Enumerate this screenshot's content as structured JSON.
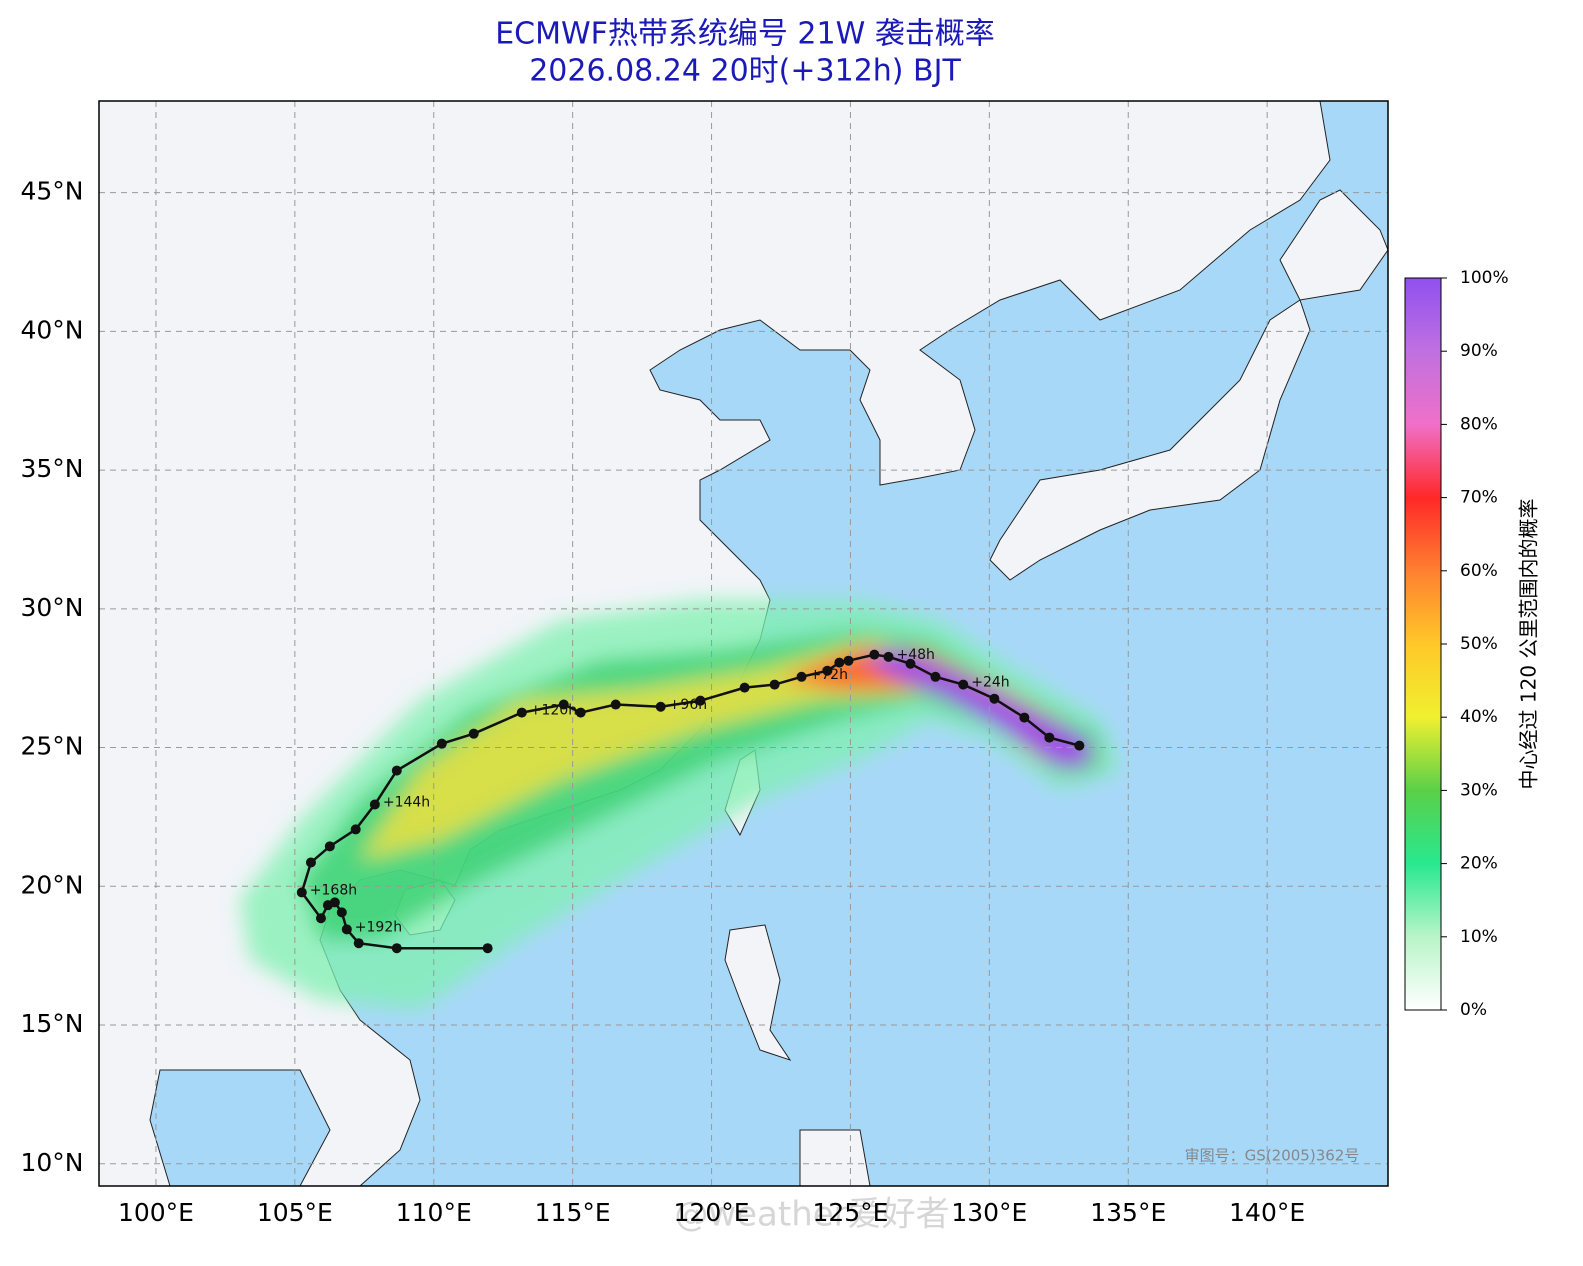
{
  "chart_data": {
    "type": "track",
    "title": "ECMWF热带系统编号 21W 袭击概率",
    "subtitle": "2026.08.24 20时(+312h) BJT",
    "xlim": [
      97.95,
      144.35
    ],
    "ylim": [
      9.2,
      48.3
    ],
    "xticks": [
      {
        "value": 100,
        "label": "100°E"
      },
      {
        "value": 105,
        "label": "105°E"
      },
      {
        "value": 110,
        "label": "110°E"
      },
      {
        "value": 115,
        "label": "115°E"
      },
      {
        "value": 120,
        "label": "120°E"
      },
      {
        "value": 125,
        "label": "125°E"
      },
      {
        "value": 130,
        "label": "130°E"
      },
      {
        "value": 135,
        "label": "135°E"
      },
      {
        "value": 140,
        "label": "140°E"
      }
    ],
    "yticks": [
      {
        "value": 10,
        "label": "10°N"
      },
      {
        "value": 15,
        "label": "15°N"
      },
      {
        "value": 20,
        "label": "20°N"
      },
      {
        "value": 25,
        "label": "25°N"
      },
      {
        "value": 30,
        "label": "30°N"
      },
      {
        "value": 35,
        "label": "35°N"
      },
      {
        "value": 40,
        "label": "40°N"
      },
      {
        "value": 45,
        "label": "45°N"
      }
    ],
    "grid": true,
    "color": "#111111",
    "x": [
      133.24,
      132.16,
      131.26,
      130.18,
      129.06,
      128.06,
      127.16,
      126.37,
      125.86,
      124.93,
      124.6,
      124.17,
      123.24,
      122.27,
      121.19,
      119.6,
      118.17,
      116.55,
      115.29,
      114.68,
      113.17,
      111.44,
      110.29,
      108.67,
      107.88,
      107.19,
      106.26,
      105.58,
      105.25,
      105.94,
      106.19,
      106.44,
      106.69,
      106.87,
      107.3,
      108.67,
      111.94
    ],
    "values": [
      25.07,
      25.36,
      26.08,
      26.76,
      27.27,
      27.55,
      28.02,
      28.27,
      28.35,
      28.13,
      28.06,
      27.77,
      27.55,
      27.27,
      27.16,
      26.69,
      26.47,
      26.55,
      26.26,
      26.55,
      26.26,
      25.5,
      25.14,
      24.17,
      22.95,
      22.05,
      21.44,
      20.86,
      19.78,
      18.85,
      19.32,
      19.42,
      19.06,
      18.45,
      17.95,
      17.77,
      17.77
    ],
    "point_labels": [
      null,
      null,
      null,
      null,
      "+24h",
      null,
      null,
      "+48h",
      null,
      null,
      null,
      null,
      "+72h",
      null,
      null,
      null,
      "+96h",
      null,
      null,
      null,
      "+120h",
      null,
      null,
      null,
      "+144h",
      null,
      null,
      null,
      "+168h",
      null,
      null,
      null,
      null,
      "+192h",
      null,
      null,
      null
    ],
    "colorbar": {
      "label": "中心经过 120 公里范围内的概率",
      "lim": [
        0,
        100
      ],
      "colors": [
        "#ffffff",
        "#b8f5c8",
        "#28e890",
        "#5ad048",
        "#f0f030",
        "#ffc828",
        "#ff8030",
        "#ff2828",
        "#f070c8",
        "#c070e0",
        "#9050f0"
      ],
      "ticks": [
        {
          "value": 0,
          "label": "0%"
        },
        {
          "value": 10,
          "label": "10%"
        },
        {
          "value": 20,
          "label": "20%"
        },
        {
          "value": 30,
          "label": "30%"
        },
        {
          "value": 40,
          "label": "40%"
        },
        {
          "value": 50,
          "label": "50%"
        },
        {
          "value": 60,
          "label": "60%"
        },
        {
          "value": 70,
          "label": "70%"
        },
        {
          "value": 80,
          "label": "80%"
        },
        {
          "value": 90,
          "label": "90%"
        },
        {
          "value": 100,
          "label": "100%"
        }
      ]
    },
    "watermarks": [
      "审图号：GS(2005)362号",
      "@weather爱好者"
    ]
  }
}
